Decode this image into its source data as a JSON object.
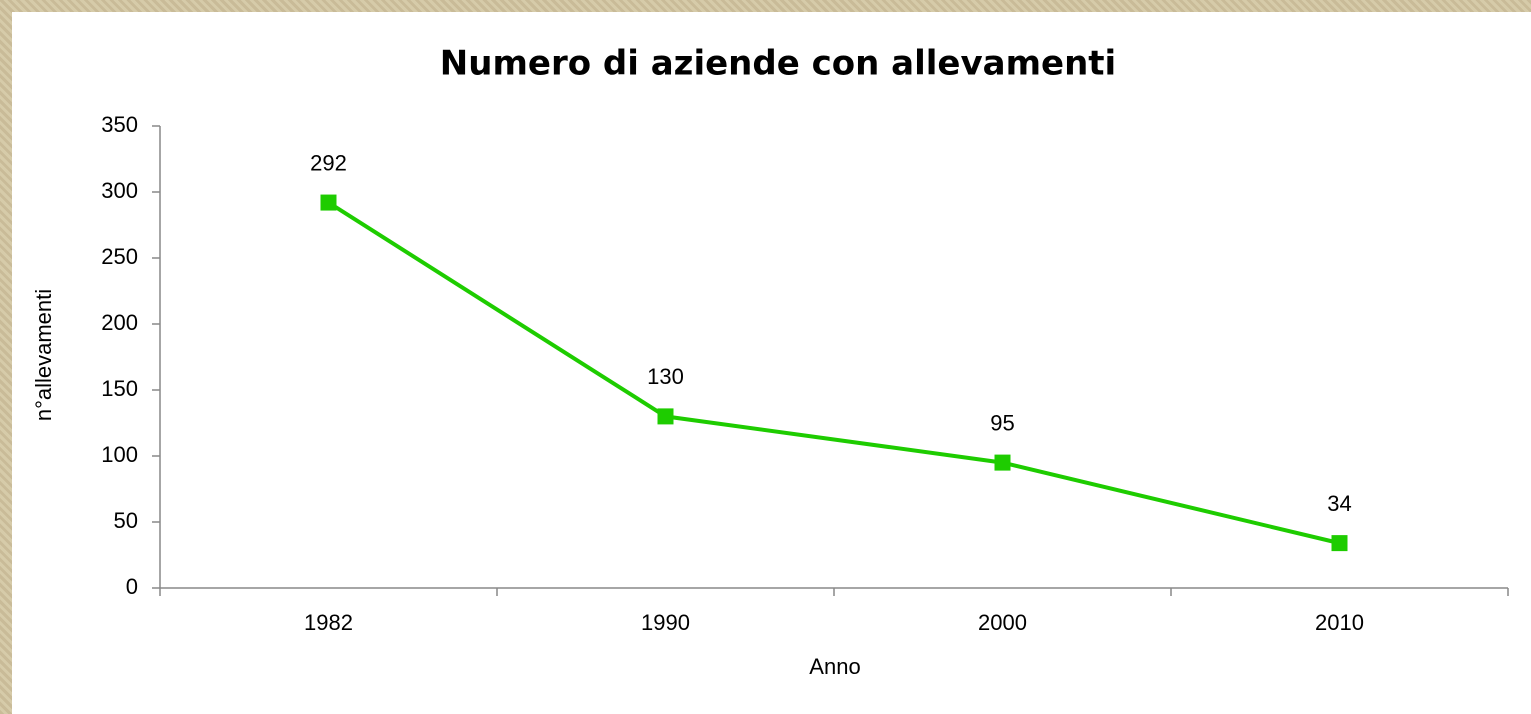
{
  "chart_data": {
    "type": "line",
    "title": "Numero di aziende con allevamenti",
    "x_label": "Anno",
    "y_label": "n°allevamenti",
    "categories": [
      "1982",
      "1990",
      "2000",
      "2010"
    ],
    "values": [
      292,
      130,
      95,
      34
    ],
    "color": "#1ecc00",
    "ylim": [
      0,
      350
    ],
    "yticks": [
      0,
      50,
      100,
      150,
      200,
      250,
      300,
      350
    ],
    "grid": false,
    "data_labels": true,
    "marker": "square"
  }
}
